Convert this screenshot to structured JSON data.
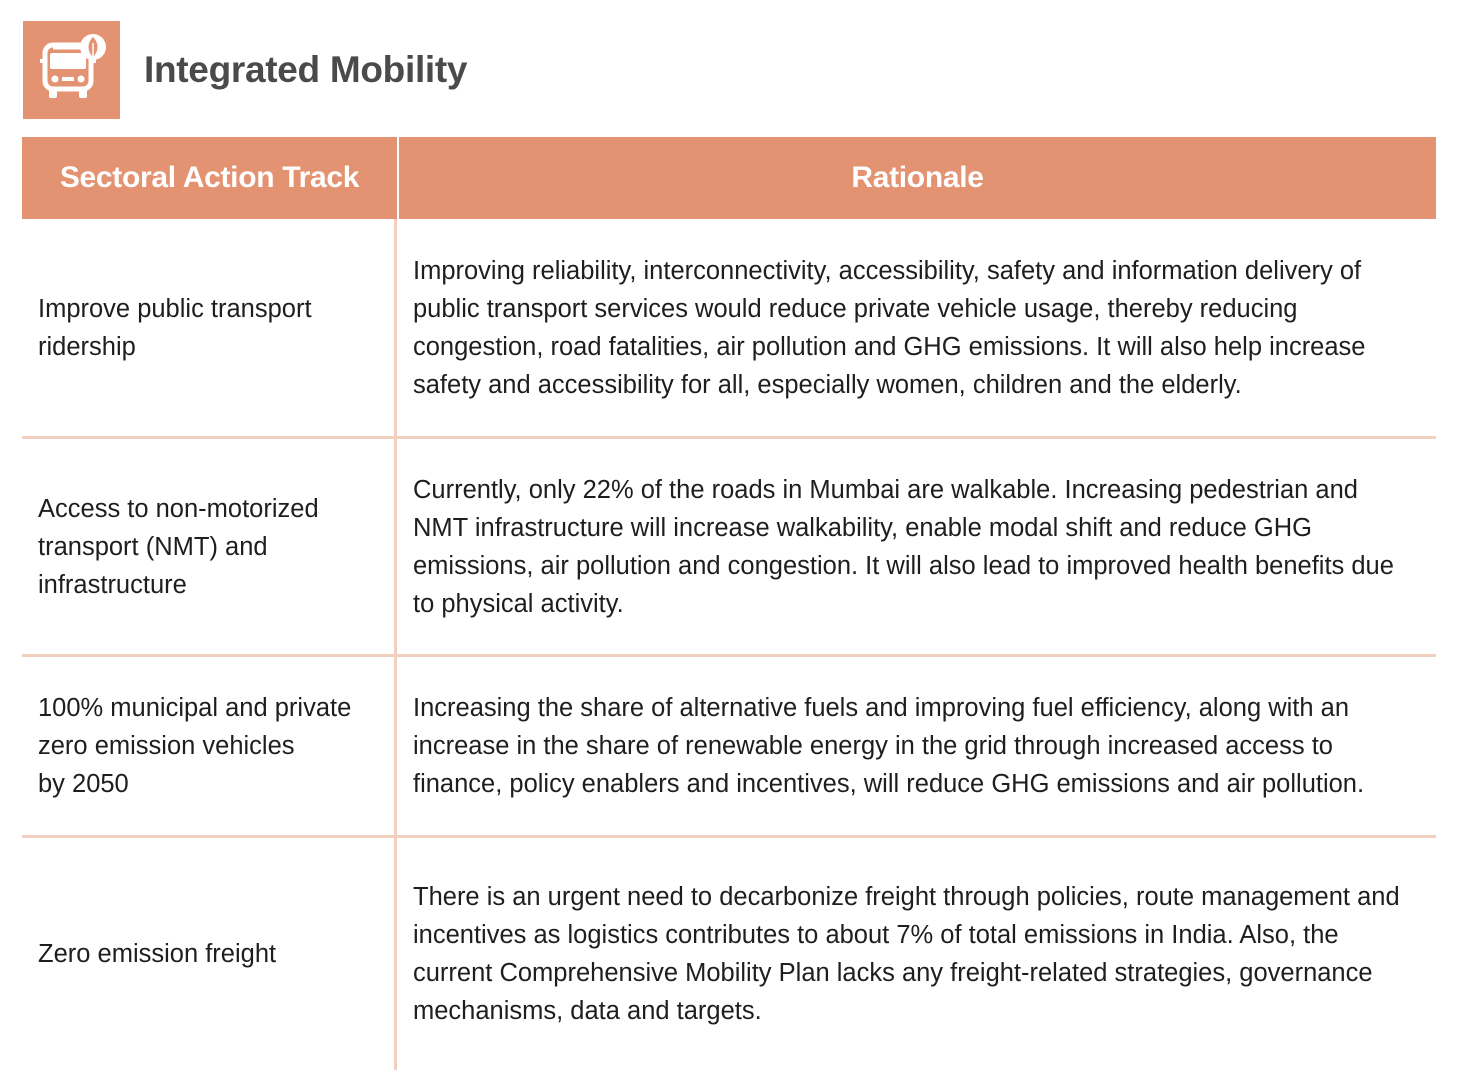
{
  "header": {
    "title": "Integrated Mobility",
    "icon": "bus-with-leaf-icon",
    "accent_color": "#e39272"
  },
  "table": {
    "columns": [
      "Sectoral Action Track",
      "Rationale"
    ],
    "rows": [
      {
        "track": "Improve public transport ridership",
        "rationale": "Improving reliability, interconnectivity, accessibility, safety and information delivery of public transport services would reduce private vehicle usage, thereby reducing congestion, road fatalities, air pollution and GHG emissions. It will also help increase safety and accessibility for all, especially women, children and the elderly."
      },
      {
        "track": "Access to non-motorized transport (NMT) and infrastructure",
        "rationale": "Currently, only 22% of the roads in Mumbai are walkable. Increasing pedestrian and NMT infrastructure will increase walkability, enable modal shift and reduce GHG emissions, air pollution and congestion. It will also lead to improved health benefits due to physical activity."
      },
      {
        "track": "100% municipal and private zero emission vehicles\nby 2050",
        "rationale": "Increasing the share of alternative fuels and improving fuel efficiency, along with an increase in the share of renewable energy in the grid through increased access to finance, policy enablers and incentives, will reduce GHG emissions and air pollution."
      },
      {
        "track": "Zero emission freight",
        "rationale": "There is an urgent need to decarbonize freight through policies, route management and incentives as logistics contributes to about 7% of total emissions in India. Also, the current Comprehensive Mobility Plan lacks any freight-related strategies, governance mechanisms, data and targets."
      }
    ]
  }
}
